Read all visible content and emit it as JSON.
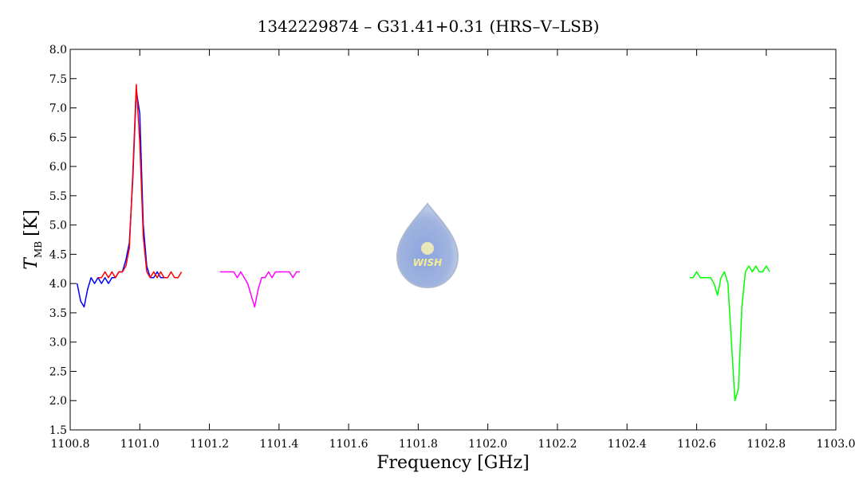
{
  "chart_data": {
    "type": "line",
    "title": "1342229874 – G31.41+0.31 (HRS–V–LSB)",
    "xlabel": "Frequency [GHz]",
    "ylabel": "T",
    "ylabel_sub": "MB",
    "ylabel_unit": "[K]",
    "watermark": "WISH",
    "xlim": [
      1100.8,
      1103.0
    ],
    "ylim": [
      1.5,
      8.0
    ],
    "xticks": [
      1100.8,
      {
        "value": 1101.0,
        "label": "1101.0"
      },
      1101.2,
      1101.4,
      1101.6,
      1101.8,
      {
        "value": 1102.0,
        "label": "1102.0"
      },
      1102.2,
      1102.4,
      1102.6,
      1102.8,
      {
        "value": 1103.0,
        "label": "1103.0"
      }
    ],
    "yticks": [
      1.5,
      {
        "value": 2.0,
        "label": "2.0"
      },
      2.5,
      {
        "value": 3.0,
        "label": "3.0"
      },
      3.5,
      {
        "value": 4.0,
        "label": "4.0"
      },
      4.5,
      {
        "value": 5.0,
        "label": "5.0"
      },
      5.5,
      {
        "value": 6.0,
        "label": "6.0"
      },
      6.5,
      {
        "value": 7.0,
        "label": "7.0"
      },
      7.5,
      {
        "value": 8.0,
        "label": "8.0"
      }
    ],
    "series": [
      {
        "color": "#0000ff",
        "x": [
          1100.82,
          1100.83,
          1100.84,
          1100.85,
          1100.86,
          1100.87,
          1100.88,
          1100.89,
          1100.9,
          1100.91,
          1100.92,
          1100.93,
          1100.94,
          1100.95,
          1100.96,
          1100.97,
          1100.98,
          1100.99,
          1101.0,
          1101.01,
          1101.02,
          1101.03,
          1101.04,
          1101.05,
          1101.06,
          1101.07,
          1101.08
        ],
        "values": [
          4.0,
          3.7,
          3.6,
          3.9,
          4.1,
          4.0,
          4.1,
          4.0,
          4.1,
          4.0,
          4.1,
          4.1,
          4.2,
          4.2,
          4.4,
          4.7,
          5.8,
          7.3,
          6.9,
          5.0,
          4.3,
          4.1,
          4.1,
          4.2,
          4.1,
          4.1,
          4.1
        ]
      },
      {
        "color": "#ff0000",
        "x": [
          1100.88,
          1100.89,
          1100.9,
          1100.91,
          1100.92,
          1100.93,
          1100.94,
          1100.95,
          1100.96,
          1100.97,
          1100.98,
          1100.99,
          1101.0,
          1101.01,
          1101.02,
          1101.03,
          1101.04,
          1101.05,
          1101.06,
          1101.07,
          1101.08,
          1101.09,
          1101.1,
          1101.11,
          1101.12
        ],
        "values": [
          4.1,
          4.1,
          4.2,
          4.1,
          4.2,
          4.1,
          4.2,
          4.2,
          4.3,
          4.6,
          5.9,
          7.4,
          6.4,
          4.8,
          4.2,
          4.1,
          4.2,
          4.1,
          4.2,
          4.1,
          4.1,
          4.2,
          4.1,
          4.1,
          4.2
        ]
      },
      {
        "color": "#ff00ff",
        "x": [
          1101.23,
          1101.24,
          1101.25,
          1101.26,
          1101.27,
          1101.28,
          1101.29,
          1101.3,
          1101.31,
          1101.32,
          1101.33,
          1101.34,
          1101.35,
          1101.36,
          1101.37,
          1101.38,
          1101.39,
          1101.4,
          1101.41,
          1101.42,
          1101.43,
          1101.44,
          1101.45,
          1101.46
        ],
        "values": [
          4.2,
          4.2,
          4.2,
          4.2,
          4.2,
          4.1,
          4.2,
          4.1,
          4.0,
          3.8,
          3.6,
          3.9,
          4.1,
          4.1,
          4.2,
          4.1,
          4.2,
          4.2,
          4.2,
          4.2,
          4.2,
          4.1,
          4.2,
          4.2
        ]
      },
      {
        "color": "#00ff00",
        "x": [
          1102.58,
          1102.59,
          1102.6,
          1102.61,
          1102.62,
          1102.63,
          1102.64,
          1102.65,
          1102.66,
          1102.67,
          1102.68,
          1102.69,
          1102.7,
          1102.71,
          1102.72,
          1102.73,
          1102.74,
          1102.75,
          1102.76,
          1102.77,
          1102.78,
          1102.79,
          1102.8,
          1102.81
        ],
        "values": [
          4.1,
          4.1,
          4.2,
          4.1,
          4.1,
          4.1,
          4.1,
          4.0,
          3.8,
          4.1,
          4.2,
          4.0,
          3.0,
          2.0,
          2.2,
          3.6,
          4.2,
          4.3,
          4.2,
          4.3,
          4.2,
          4.2,
          4.3,
          4.2
        ]
      }
    ]
  }
}
